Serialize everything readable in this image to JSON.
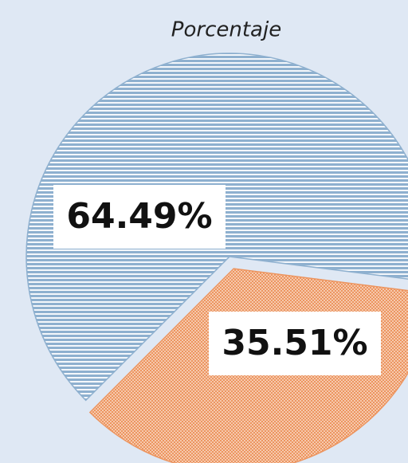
{
  "chart_data": {
    "type": "pie",
    "title": "Porcentaje",
    "values": [
      64.49,
      35.51
    ],
    "value_labels": [
      "64.49%",
      "35.51%"
    ],
    "colors": [
      "#8eb0cf",
      "#ec9560"
    ],
    "exploded": [
      false,
      true
    ]
  }
}
